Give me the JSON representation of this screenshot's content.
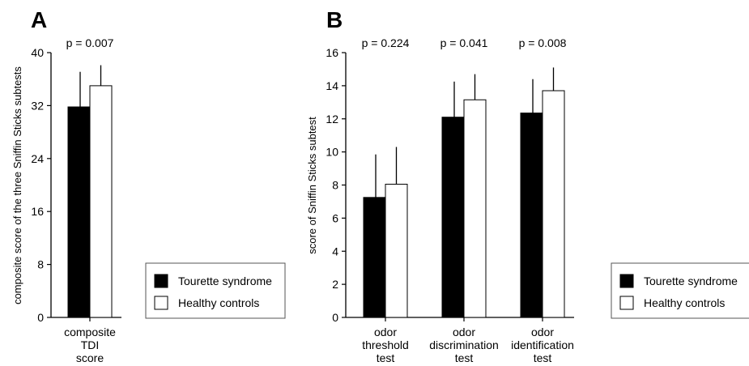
{
  "chart_data": [
    {
      "type": "bar",
      "panel": "A",
      "ylabel": "composite score of the three Sniffin Sticks subtests",
      "ylim": [
        0,
        40
      ],
      "yticks": [
        0,
        8,
        16,
        24,
        32,
        40
      ],
      "categories": [
        [
          "composite",
          "TDI",
          "score"
        ]
      ],
      "series": [
        {
          "name": "Tourette syndrome",
          "color": "#000000",
          "values": [
            31.8
          ],
          "errors": [
            5.3
          ]
        },
        {
          "name": "Healthy controls",
          "color": "#ffffff",
          "values": [
            35.0
          ],
          "errors": [
            3.1
          ]
        }
      ],
      "pvalues": [
        "p = 0.007"
      ],
      "legend": {
        "placement": "bottom-right",
        "entries": [
          "Tourette syndrome",
          "Healthy controls"
        ]
      }
    },
    {
      "type": "bar",
      "panel": "B",
      "ylabel": "score of Sniffin Sticks subtest",
      "ylim": [
        0,
        16
      ],
      "yticks": [
        0,
        2,
        4,
        6,
        8,
        10,
        12,
        14,
        16
      ],
      "categories": [
        [
          "odor",
          "threshold",
          "test"
        ],
        [
          "odor",
          "discrimination",
          "test"
        ],
        [
          "odor",
          "identification",
          "test"
        ]
      ],
      "series": [
        {
          "name": "Tourette syndrome",
          "color": "#000000",
          "values": [
            7.25,
            12.1,
            12.35
          ],
          "errors": [
            2.6,
            2.15,
            2.05
          ]
        },
        {
          "name": "Healthy controls",
          "color": "#ffffff",
          "values": [
            8.05,
            13.15,
            13.7
          ],
          "errors": [
            2.25,
            1.55,
            1.4
          ]
        }
      ],
      "pvalues": [
        "p = 0.224",
        "p = 0.041",
        "p = 0.008"
      ],
      "legend": {
        "placement": "bottom-right",
        "entries": [
          "Tourette syndrome",
          "Healthy controls"
        ]
      }
    }
  ]
}
